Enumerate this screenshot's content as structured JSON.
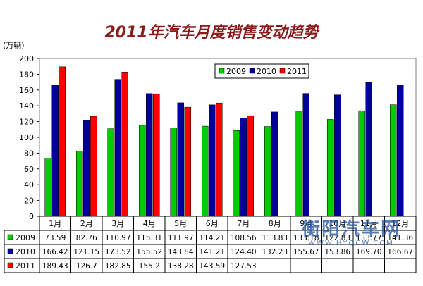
{
  "chart_data": {
    "type": "bar",
    "title": "2011年汽车月度销售变动趋势",
    "ylabel": "(万辆)",
    "ylim": [
      0,
      200
    ],
    "yticks": [
      0,
      20,
      40,
      60,
      80,
      100,
      120,
      140,
      160,
      180,
      200
    ],
    "grid": false,
    "legend_position": "top-right",
    "categories": [
      "1月",
      "2月",
      "3月",
      "4月",
      "5月",
      "6月",
      "7月",
      "8月",
      "9月",
      "10月",
      "11月",
      "12月"
    ],
    "series": [
      {
        "name": "2009",
        "color": "#00cc00",
        "values": [
          73.59,
          82.76,
          110.97,
          115.31,
          111.97,
          114.21,
          108.56,
          113.83,
          133.18,
          122.83,
          133.77,
          141.36
        ],
        "labels": [
          "73.59",
          "82.76",
          "110.97",
          "115.31",
          "111.97",
          "114.21",
          "108.56",
          "113.83",
          "133.18",
          "122.83",
          "133.77",
          "141.36"
        ]
      },
      {
        "name": "2010",
        "color": "#000099",
        "values": [
          166.42,
          121.15,
          173.52,
          155.52,
          143.84,
          141.21,
          124.4,
          132.23,
          155.67,
          153.86,
          169.7,
          166.67
        ],
        "labels": [
          "166.42",
          "121.15",
          "173.52",
          "155.52",
          "143.84",
          "141.21",
          "124.40",
          "132.23",
          "155.67",
          "153.86",
          "169.70",
          "166.67"
        ]
      },
      {
        "name": "2011",
        "color": "#ff0000",
        "values": [
          189.43,
          126.7,
          182.85,
          155.2,
          138.28,
          143.59,
          127.53,
          null,
          null,
          null,
          null,
          null
        ],
        "labels": [
          "189.43",
          "126.7",
          "182.85",
          "155.2",
          "138.28",
          "143.59",
          "127.53",
          "",
          "",
          "",
          "",
          ""
        ]
      }
    ]
  },
  "watermark": {
    "line1": "衡阳汽车网",
    "line2": "WWW.HYQCW.COM"
  }
}
